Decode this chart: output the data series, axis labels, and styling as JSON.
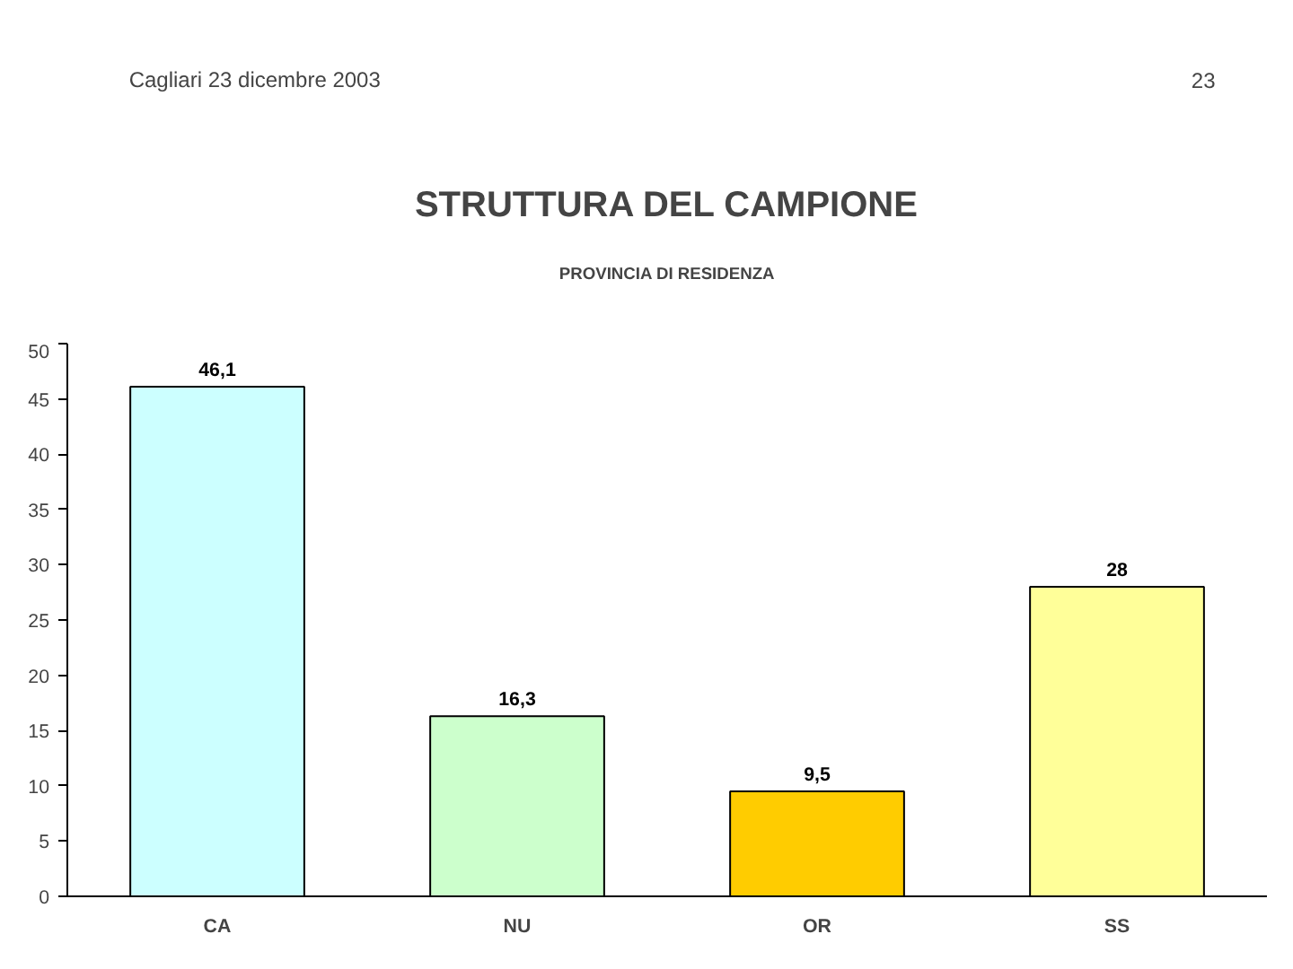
{
  "chart_data": {
    "type": "bar",
    "title": "STRUTTURA DEL CAMPIONE",
    "subtitle": "PROVINCIA DI RESIDENZA",
    "annotations": [
      "Cagliari 23 dicembre 2003",
      "23"
    ],
    "categories": [
      "CA",
      "NU",
      "OR",
      "SS"
    ],
    "values": [
      46.1,
      16.3,
      9.5,
      28
    ],
    "colors": [
      "#ccffff",
      "#ccffcc",
      "#ffcc00",
      "#ffff99"
    ],
    "value_labels": [
      "46,1",
      "16,3",
      "9,5",
      "28"
    ],
    "ylim": [
      0,
      50
    ],
    "yticks": [
      0,
      5,
      10,
      15,
      20,
      25,
      30,
      35,
      40,
      45,
      50
    ],
    "grid": false
  }
}
